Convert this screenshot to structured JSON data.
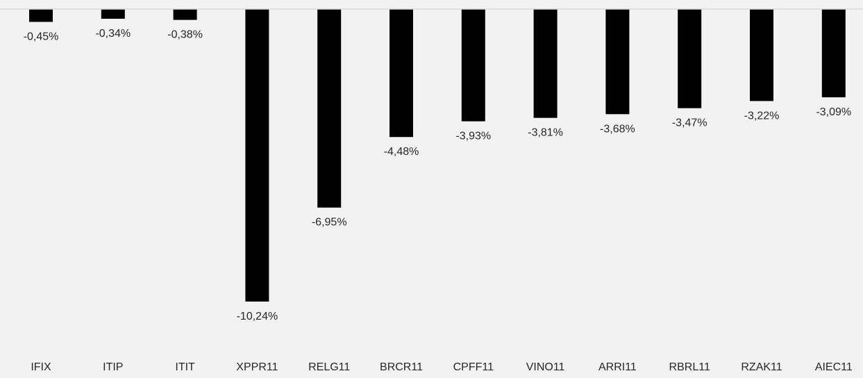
{
  "chart_data": {
    "type": "bar",
    "categories": [
      "IFIX",
      "ITIP",
      "ITIT",
      "XPPR11",
      "RELG11",
      "BRCR11",
      "CPFF11",
      "VINO11",
      "ARRI11",
      "RBRL11",
      "RZAK11",
      "AIEC11"
    ],
    "values": [
      -0.45,
      -0.34,
      -0.38,
      -10.24,
      -6.95,
      -4.48,
      -3.93,
      -3.81,
      -3.68,
      -3.47,
      -3.22,
      -3.09
    ],
    "data_labels": [
      "-0,45%",
      "-0,34%",
      "-0,38%",
      "-10,24%",
      "-6,95%",
      "-4,48%",
      "-3,93%",
      "-3,81%",
      "-3,68%",
      "-3,47%",
      "-3,22%",
      "-3,09%"
    ],
    "title": "",
    "xlabel": "",
    "ylabel": "",
    "ylim": [
      -10.24,
      0
    ],
    "grid": false,
    "legend": "none",
    "colors": {
      "bar": "#000000",
      "background": "#f2f2f2",
      "baseline": "#d9d9d9",
      "text": "#262626"
    }
  }
}
